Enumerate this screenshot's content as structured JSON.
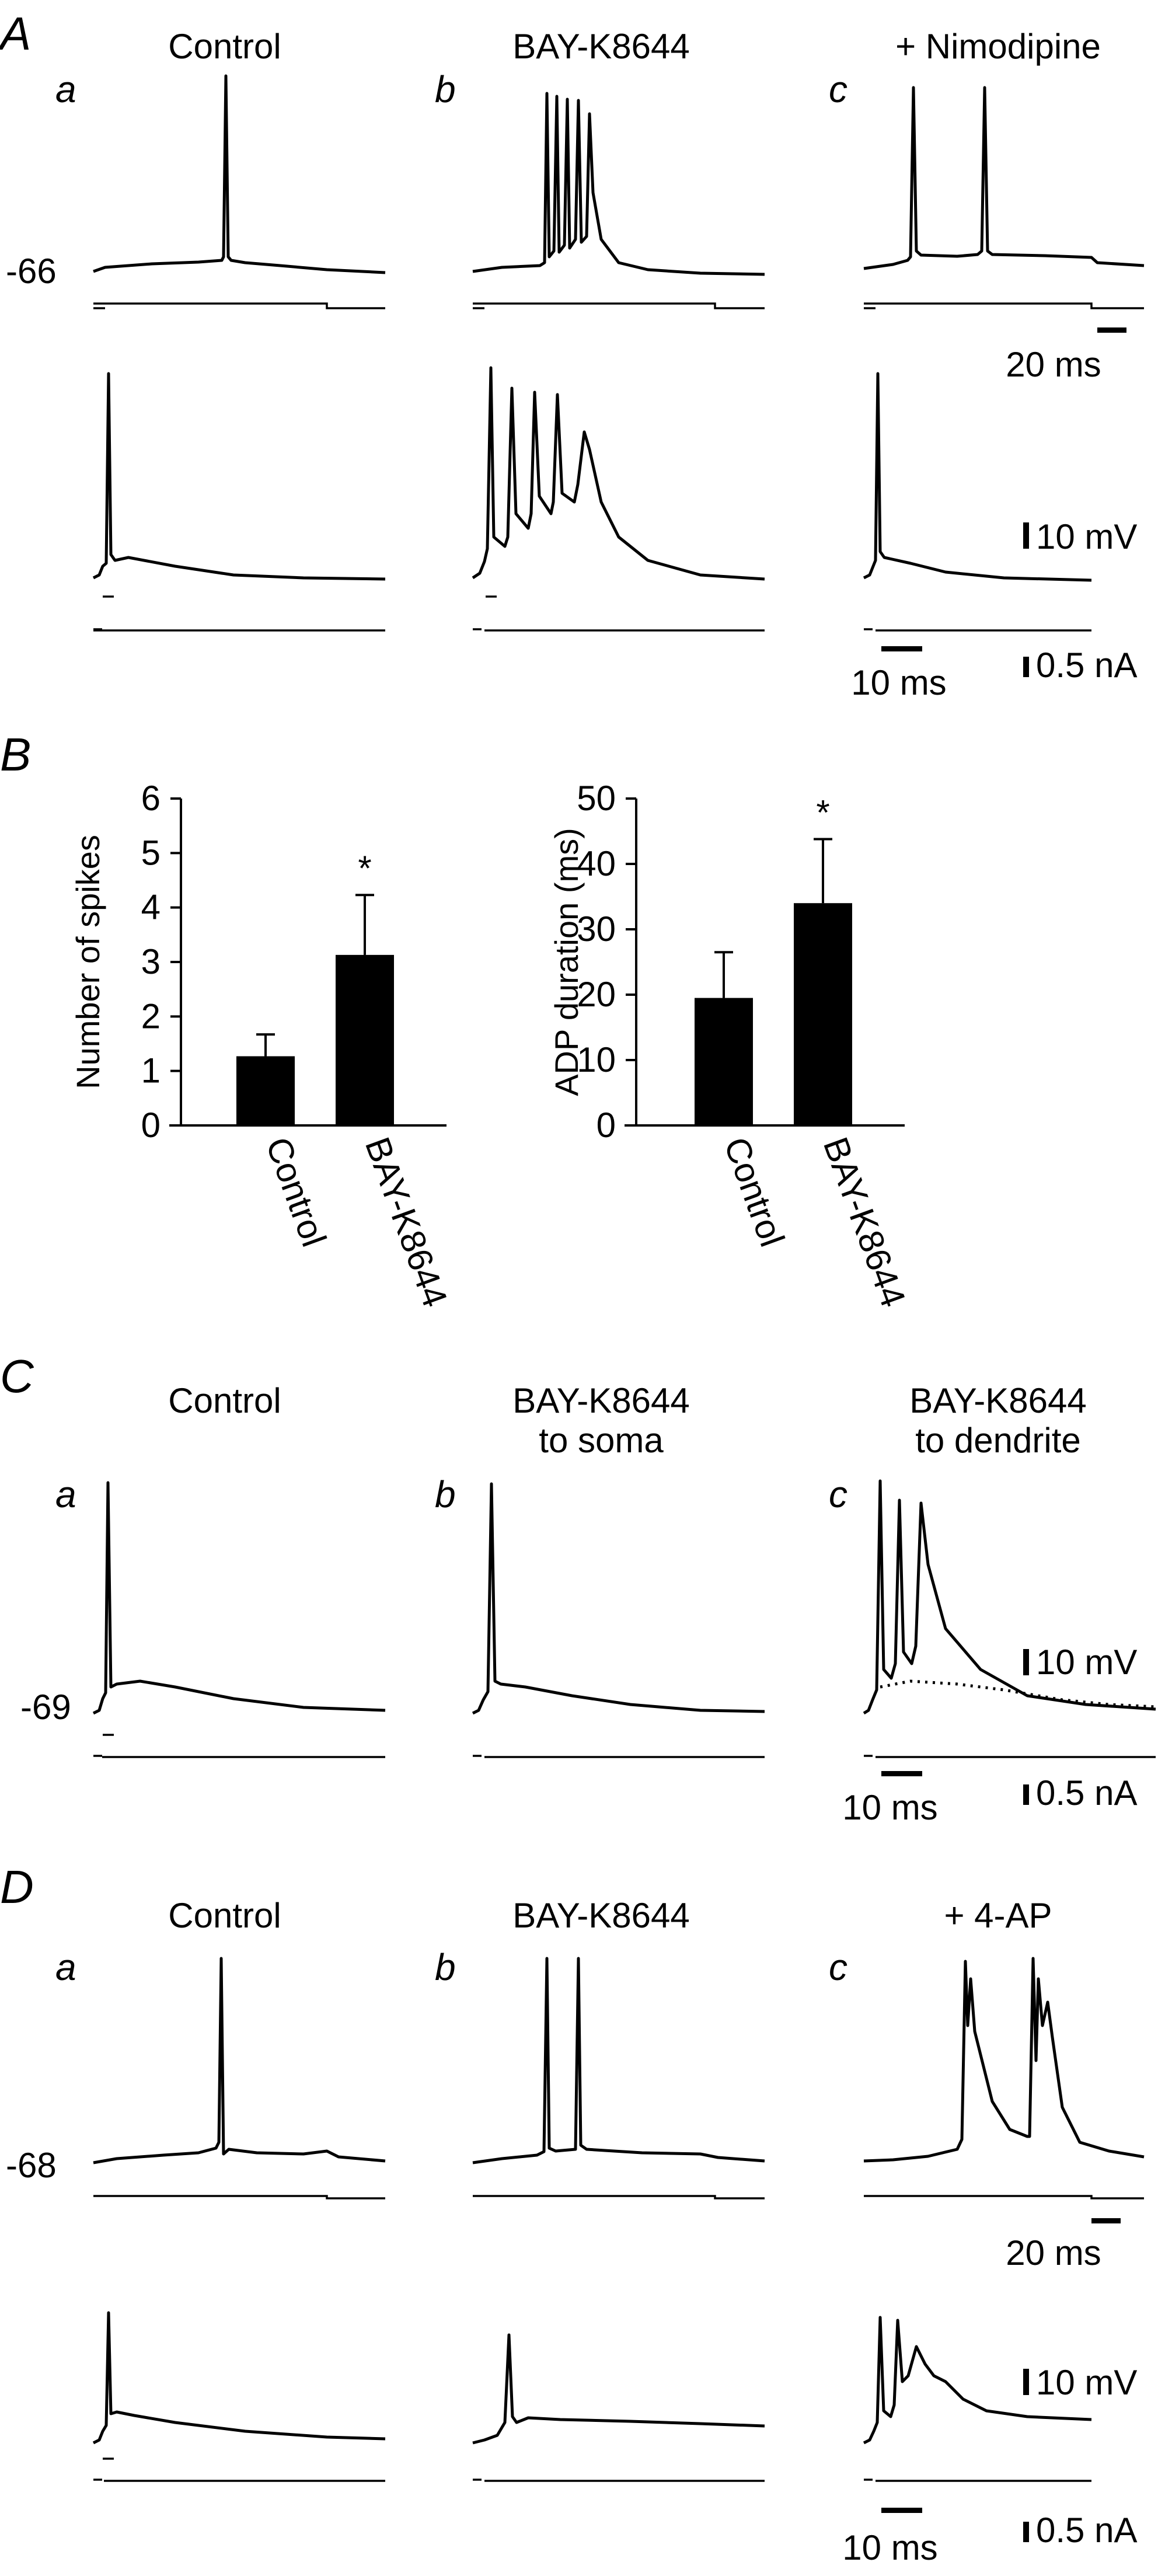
{
  "panels": {
    "A": {
      "letter": "A",
      "columns": [
        {
          "sub": "a",
          "title": "Control"
        },
        {
          "sub": "b",
          "title": "BAY-K8644"
        },
        {
          "sub": "c",
          "title": "+ Nimodipine"
        }
      ],
      "resting_potential": "-66",
      "scale_time_top": "20 ms",
      "scale_time_bottom": "10 ms",
      "scale_voltage": "10 mV",
      "scale_current": "0.5 nA"
    },
    "B": {
      "letter": "B"
    },
    "C": {
      "letter": "C",
      "columns": [
        {
          "sub": "a",
          "title": "Control",
          "title2": ""
        },
        {
          "sub": "b",
          "title": "BAY-K8644",
          "title2": "to soma"
        },
        {
          "sub": "c",
          "title": "BAY-K8644",
          "title2": "to dendrite"
        }
      ],
      "resting_potential": "-69",
      "scale_time": "10 ms",
      "scale_voltage": "10 mV",
      "scale_current": "0.5 nA"
    },
    "D": {
      "letter": "D",
      "columns": [
        {
          "sub": "a",
          "title": "Control"
        },
        {
          "sub": "b",
          "title": "BAY-K8644"
        },
        {
          "sub": "c",
          "title": "+ 4-AP"
        }
      ],
      "resting_potential": "-68",
      "scale_time_top": "20 ms",
      "scale_time_bottom": "10 ms",
      "scale_voltage": "10 mV",
      "scale_current": "0.5 nA"
    }
  },
  "chart_data": [
    {
      "type": "bar",
      "categories": [
        "Control",
        "BAY-K8644"
      ],
      "values": [
        1.27,
        3.13
      ],
      "errors": [
        0.4,
        1.1
      ],
      "significance": [
        "",
        "*"
      ],
      "ylabel": "Number of spikes",
      "xlabel": "",
      "ylim": [
        0,
        6
      ],
      "yticks": [
        "0",
        "1",
        "2",
        "3",
        "4",
        "5",
        "6"
      ]
    },
    {
      "type": "bar",
      "categories": [
        "Control",
        "BAY-K8644"
      ],
      "values": [
        19.5,
        34.0
      ],
      "errors": [
        7.0,
        9.8
      ],
      "significance": [
        "",
        "*"
      ],
      "ylabel": "ADP duration (ms)",
      "xlabel": "",
      "ylim": [
        0,
        50
      ],
      "yticks": [
        "0",
        "10",
        "20",
        "30",
        "40",
        "50"
      ]
    }
  ]
}
